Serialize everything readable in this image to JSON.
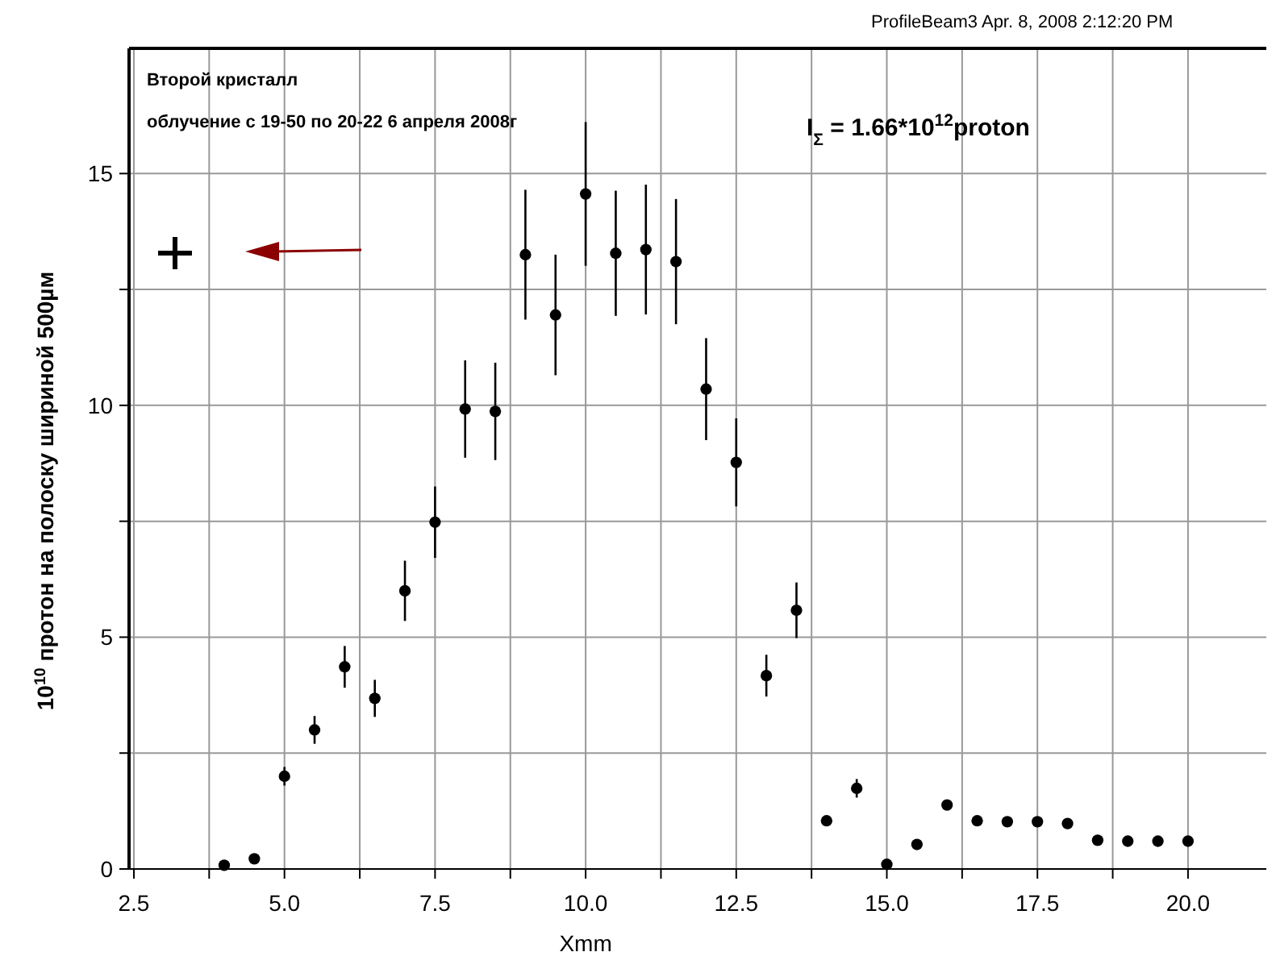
{
  "chart_data": {
    "type": "scatter",
    "xlabel": "Xmm",
    "ylabel": "10$^{10}$ протон на полоску шириной 500µм",
    "annotations": [
      "ProfileBeam3  Apr. 8, 2008  2:12:20 PM",
      "Второй кристалл",
      "облучение с 19-50 по 20-22  6 апреля 2008г",
      "I$_{Σ}$ = 1.66*10$^{12}$proton"
    ],
    "x": [
      4.0,
      4.5,
      5.0,
      5.5,
      6.0,
      6.5,
      7.0,
      7.5,
      8.0,
      8.5,
      9.0,
      9.5,
      10.0,
      10.5,
      11.0,
      11.5,
      12.0,
      12.5,
      13.0,
      13.5,
      14.0,
      14.5,
      15.0,
      15.5,
      16.0,
      16.5,
      17.0,
      17.5,
      18.0,
      18.5,
      19.0,
      19.5,
      20.0
    ],
    "series": [
      {
        "color": "#000000",
        "values": [
          0.08,
          0.22,
          2.0,
          3.0,
          4.36,
          3.68,
          6.0,
          7.48,
          9.92,
          9.87,
          13.25,
          11.95,
          14.56,
          13.28,
          13.36,
          13.1,
          10.35,
          8.77,
          4.17,
          5.58,
          1.04,
          1.74,
          0.1,
          0.53,
          1.38,
          1.04,
          1.02,
          1.02,
          0.98,
          0.62,
          0.6,
          0.6,
          0.6
        ],
        "errors": [
          null,
          null,
          0.2,
          0.3,
          0.45,
          0.4,
          0.65,
          0.77,
          1.05,
          1.05,
          1.4,
          1.3,
          1.55,
          1.35,
          1.4,
          1.35,
          1.1,
          0.95,
          0.45,
          0.6,
          null,
          0.2,
          null,
          null,
          0.1,
          null,
          null,
          null,
          null,
          null,
          null,
          null,
          null
        ]
      }
    ],
    "xlim": [
      2.42,
      21.3
    ],
    "ylim": [
      0,
      17.7
    ],
    "xticks": [
      {
        "value": 2.5,
        "label": "2.5"
      },
      {
        "value": 3.75,
        "label": null
      },
      {
        "value": 5,
        "label": "5.0"
      },
      {
        "value": 6.25,
        "label": null
      },
      {
        "value": 7.5,
        "label": "7.5"
      },
      {
        "value": 8.75,
        "label": null
      },
      {
        "value": 10,
        "label": "10.0"
      },
      {
        "value": 11.25,
        "label": null
      },
      {
        "value": 12.5,
        "label": "12.5"
      },
      {
        "value": 13.75,
        "label": null
      },
      {
        "value": 15,
        "label": "15.0"
      },
      {
        "value": 16.25,
        "label": null
      },
      {
        "value": 17.5,
        "label": "17.5"
      },
      {
        "value": 18.75,
        "label": null
      },
      {
        "value": 20,
        "label": "20.0"
      }
    ],
    "yticks": [
      0,
      {
        "value": 2.5,
        "label": null
      },
      5,
      {
        "value": 7.5,
        "label": null
      },
      10,
      {
        "value": 12.5,
        "label": null
      },
      15
    ],
    "grid": true,
    "marker": "circle"
  }
}
